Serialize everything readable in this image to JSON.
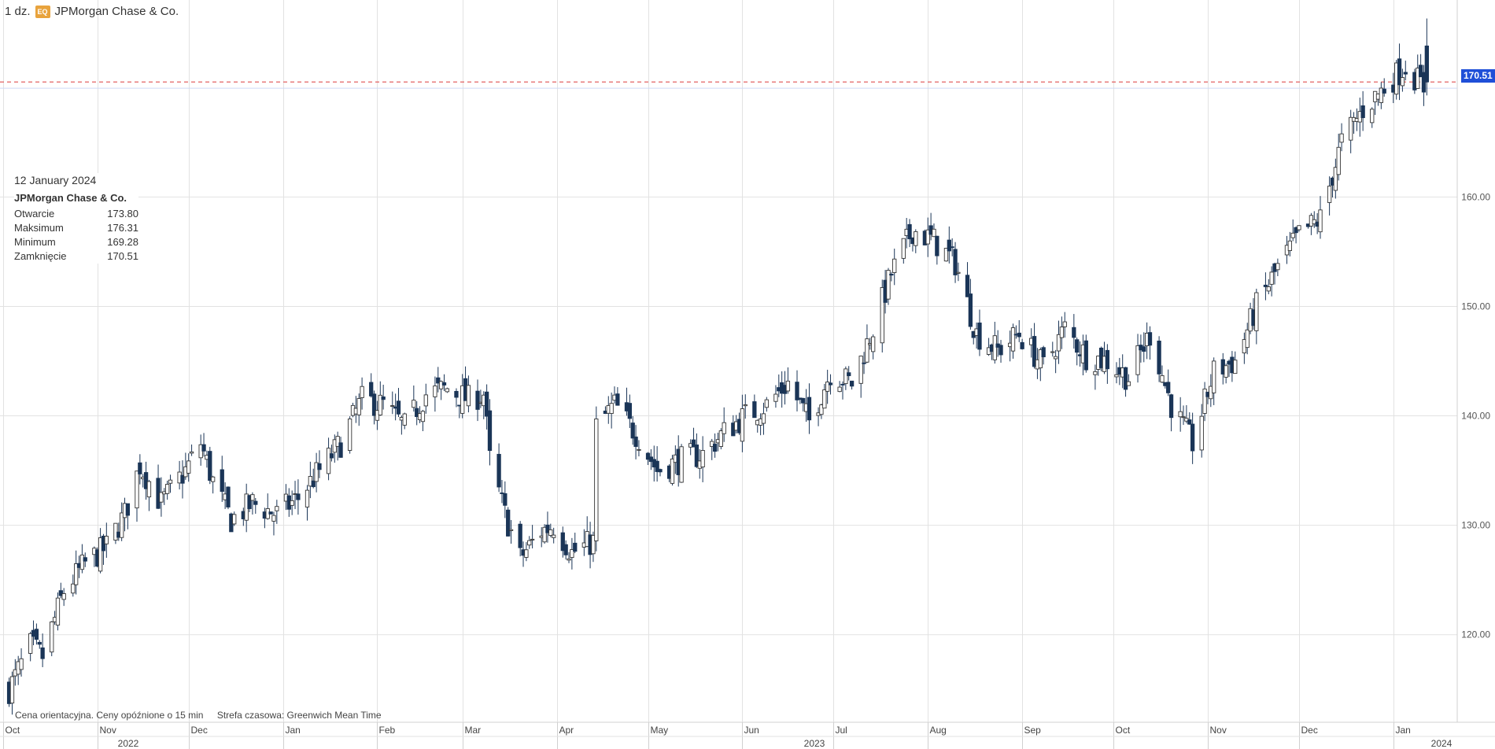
{
  "header": {
    "interval": "1 dz.",
    "badge": "EQ",
    "instrument": "JPMorgan Chase & Co."
  },
  "tooltip": {
    "date": "12 January 2024",
    "instrument": "JPMorgan Chase & Co.",
    "rows": [
      {
        "label": "Otwarcie",
        "value": "173.80"
      },
      {
        "label": "Maksimum",
        "value": "176.31"
      },
      {
        "label": "Minimum",
        "value": "169.28"
      },
      {
        "label": "Zamknięcie",
        "value": "170.51"
      }
    ]
  },
  "footnote": {
    "disclaimer": "Cena orientacyjna. Ceny opóźnione o 15 min",
    "timezone": "Strefa czasowa: Greenwich Mean Time"
  },
  "last_price": "170.51",
  "colors": {
    "up_fill": "#ffffff",
    "down_fill": "#1a3557",
    "wick": "#1a3557",
    "grid": "#e2e2e2",
    "ref_line": "#e05050",
    "price_tag": "#1f4fd8"
  },
  "chart_data": {
    "type": "candlestick",
    "title": "JPMorgan Chase & Co.",
    "interval": "daily",
    "ylim": [
      112,
      178
    ],
    "y_ticks": [
      "120.00",
      "130.00",
      "140.00",
      "150.00",
      "160.00"
    ],
    "x_month_labels": [
      "Oct",
      "Nov",
      "Dec",
      "Jan",
      "Feb",
      "Mar",
      "Apr",
      "May",
      "Jun",
      "Jul",
      "Aug",
      "Sep",
      "Oct",
      "Nov",
      "Dec",
      "Jan"
    ],
    "x_year_labels": [
      "2022",
      "2023",
      "2024"
    ],
    "reference_line": 170.51,
    "grid": true,
    "last_bar": {
      "date": "12 January 2024",
      "open": 173.8,
      "high": 176.31,
      "low": 169.28,
      "close": 170.51
    },
    "close_path": [
      [
        "2022-10-03",
        115.0
      ],
      [
        "2022-10-10",
        119.0
      ],
      [
        "2022-10-14",
        118.0
      ],
      [
        "2022-10-21",
        124.0
      ],
      [
        "2022-10-28",
        126.5
      ],
      [
        "2022-11-04",
        128.0
      ],
      [
        "2022-11-10",
        131.0
      ],
      [
        "2022-11-15",
        135.5
      ],
      [
        "2022-11-22",
        132.0
      ],
      [
        "2022-11-30",
        135.0
      ],
      [
        "2022-12-05",
        137.5
      ],
      [
        "2022-12-09",
        134.0
      ],
      [
        "2022-12-15",
        130.5
      ],
      [
        "2022-12-22",
        132.0
      ],
      [
        "2022-12-30",
        131.0
      ],
      [
        "2023-01-06",
        132.5
      ],
      [
        "2023-01-13",
        135.0
      ],
      [
        "2023-01-20",
        137.5
      ],
      [
        "2023-01-27",
        141.5
      ],
      [
        "2023-02-03",
        141.0
      ],
      [
        "2023-02-10",
        139.0
      ],
      [
        "2023-02-17",
        142.0
      ],
      [
        "2023-02-24",
        142.5
      ],
      [
        "2023-03-03",
        141.5
      ],
      [
        "2023-03-08",
        142.0
      ],
      [
        "2023-03-10",
        136.0
      ],
      [
        "2023-03-15",
        131.0
      ],
      [
        "2023-03-20",
        127.0
      ],
      [
        "2023-03-27",
        129.5
      ],
      [
        "2023-03-31",
        130.0
      ],
      [
        "2023-04-06",
        127.5
      ],
      [
        "2023-04-13",
        128.5
      ],
      [
        "2023-04-14",
        139.0
      ],
      [
        "2023-04-20",
        141.0
      ],
      [
        "2023-04-28",
        138.0
      ],
      [
        "2023-05-04",
        135.0
      ],
      [
        "2023-05-12",
        136.0
      ],
      [
        "2023-05-19",
        136.5
      ],
      [
        "2023-05-26",
        138.5
      ],
      [
        "2023-06-02",
        140.0
      ],
      [
        "2023-06-09",
        141.0
      ],
      [
        "2023-06-16",
        143.0
      ],
      [
        "2023-06-23",
        139.5
      ],
      [
        "2023-06-30",
        144.0
      ],
      [
        "2023-07-07",
        143.0
      ],
      [
        "2023-07-14",
        148.0
      ],
      [
        "2023-07-20",
        153.0
      ],
      [
        "2023-07-27",
        157.0
      ],
      [
        "2023-08-03",
        156.0
      ],
      [
        "2023-08-10",
        154.0
      ],
      [
        "2023-08-17",
        147.5
      ],
      [
        "2023-08-24",
        146.0
      ],
      [
        "2023-08-31",
        147.5
      ],
      [
        "2023-09-08",
        144.5
      ],
      [
        "2023-09-15",
        148.0
      ],
      [
        "2023-09-22",
        145.5
      ],
      [
        "2023-09-29",
        145.0
      ],
      [
        "2023-10-06",
        143.5
      ],
      [
        "2023-10-13",
        147.5
      ],
      [
        "2023-10-20",
        141.0
      ],
      [
        "2023-10-27",
        137.5
      ],
      [
        "2023-11-03",
        144.0
      ],
      [
        "2023-11-10",
        145.0
      ],
      [
        "2023-11-17",
        150.0
      ],
      [
        "2023-11-24",
        153.5
      ],
      [
        "2023-12-01",
        156.5
      ],
      [
        "2023-12-08",
        158.0
      ],
      [
        "2023-12-15",
        165.0
      ],
      [
        "2023-12-22",
        168.0
      ],
      [
        "2023-12-29",
        170.0
      ],
      [
        "2024-01-05",
        172.0
      ],
      [
        "2024-01-11",
        170.0
      ],
      [
        "2024-01-12",
        170.51
      ]
    ]
  }
}
